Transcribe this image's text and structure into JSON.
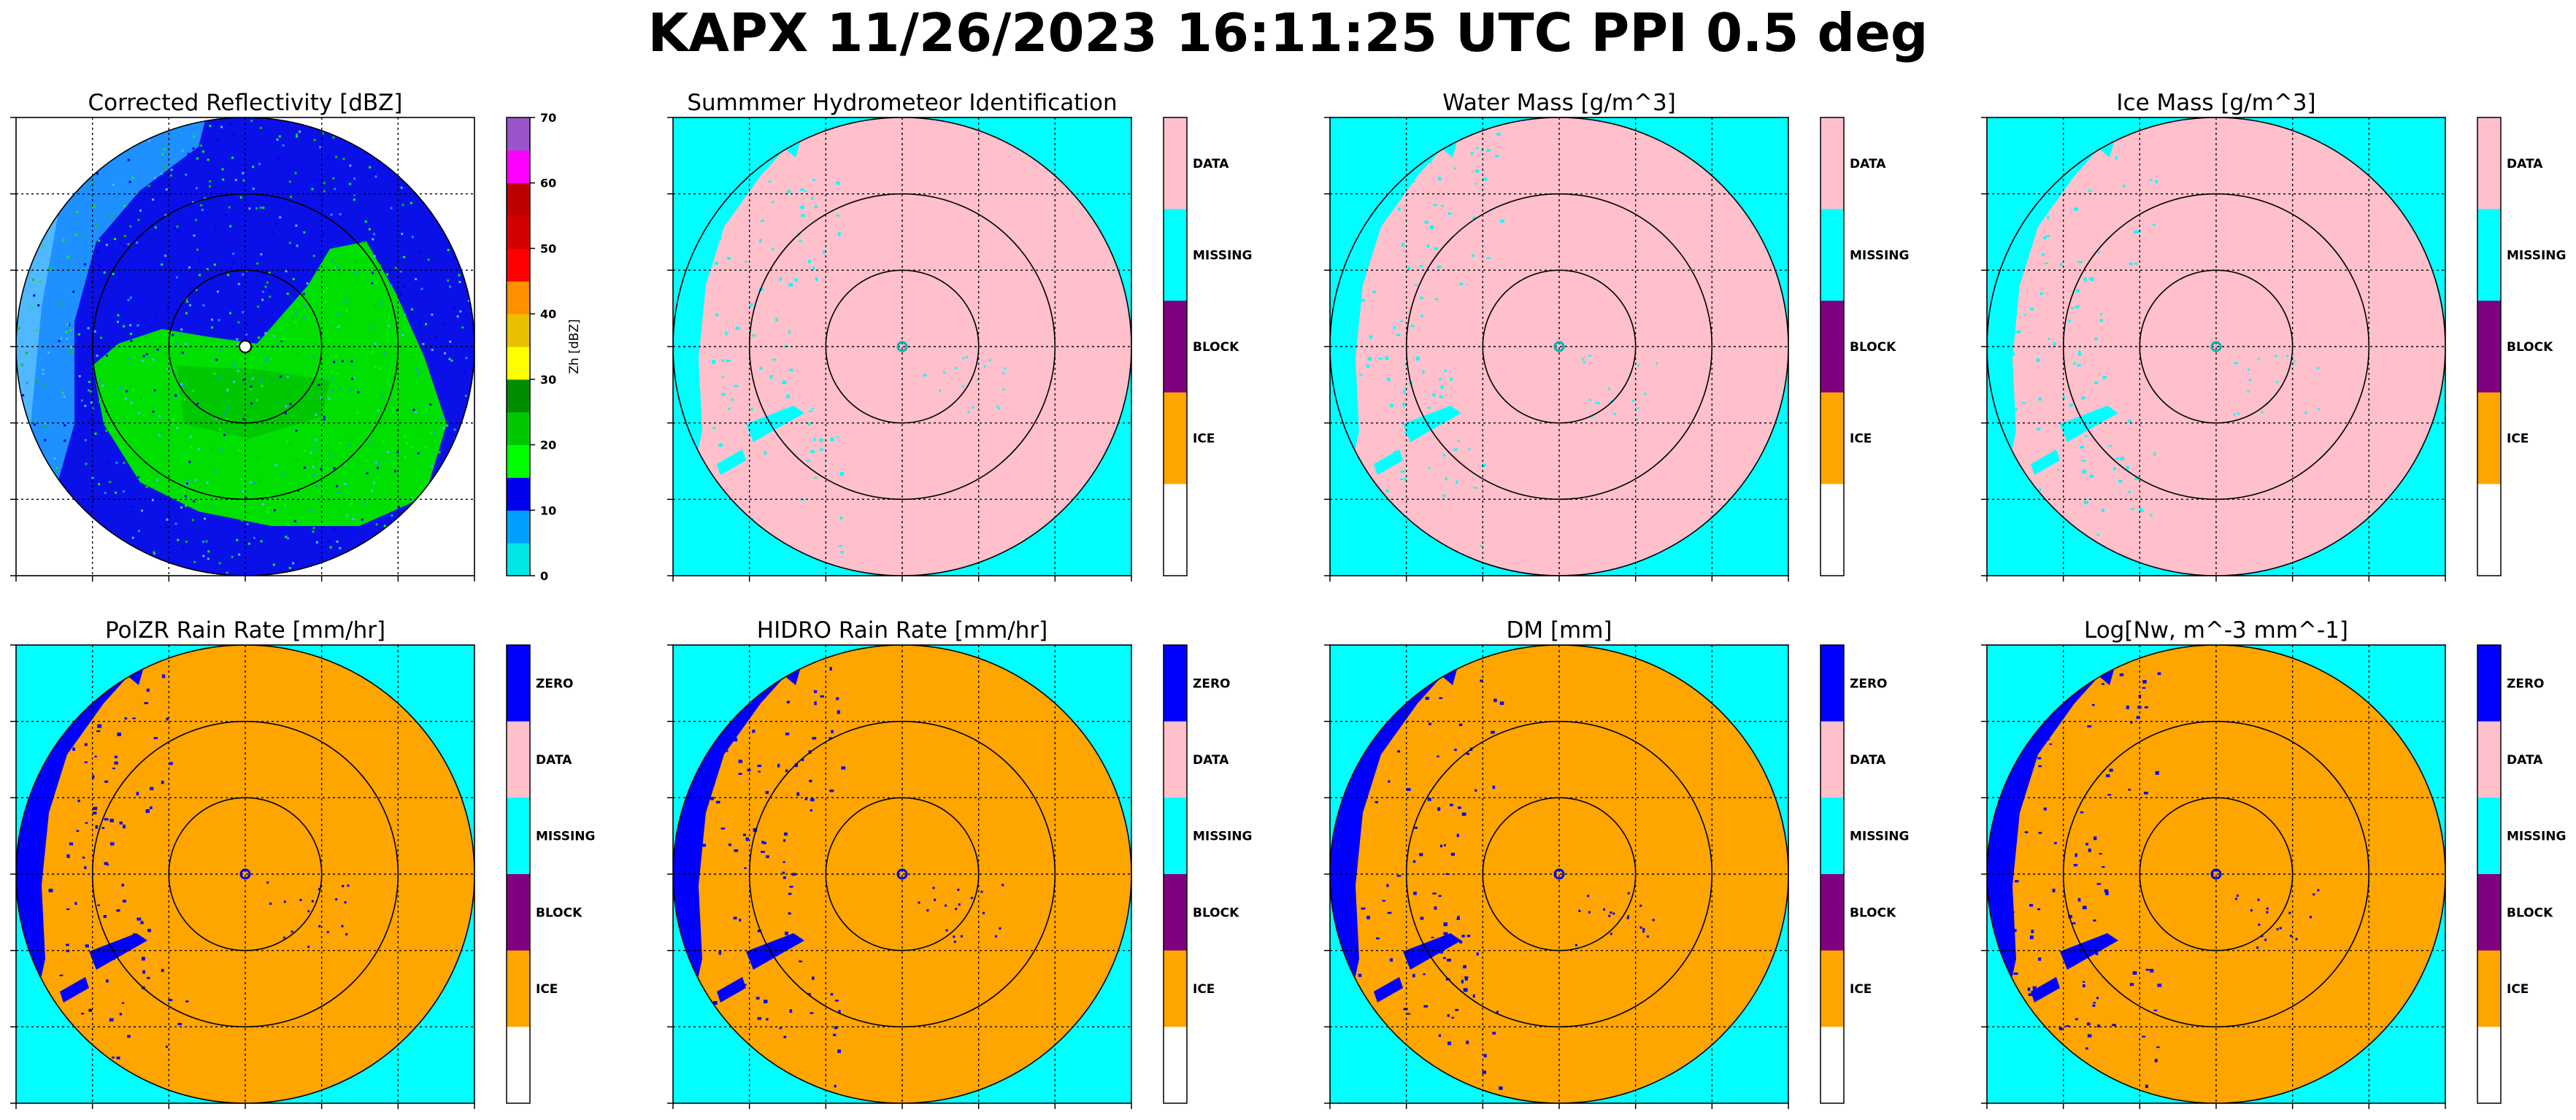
{
  "figure": {
    "suptitle": "KAPX 11/26/2023 16:11:25 UTC PPI 0.5 deg"
  },
  "chart_data": [
    {
      "type": "heatmap",
      "title": "Corrected Reflectivity [dBZ]",
      "render": "reflectivity",
      "colorbar": {
        "kind": "continuous",
        "label": "Zh [dBZ]",
        "ticks": [
          "0",
          "10",
          "20",
          "30",
          "40",
          "50",
          "60",
          "70"
        ],
        "range": [
          0,
          70
        ],
        "bins": [
          {
            "from": 0,
            "to": 5,
            "color": "#00e6e6"
          },
          {
            "from": 5,
            "to": 10,
            "color": "#00a0ff"
          },
          {
            "from": 10,
            "to": 15,
            "color": "#0000f0"
          },
          {
            "from": 15,
            "to": 20,
            "color": "#00ff00"
          },
          {
            "from": 20,
            "to": 25,
            "color": "#00c800"
          },
          {
            "from": 25,
            "to": 30,
            "color": "#008c00"
          },
          {
            "from": 30,
            "to": 35,
            "color": "#ffff00"
          },
          {
            "from": 35,
            "to": 40,
            "color": "#e8c000"
          },
          {
            "from": 40,
            "to": 45,
            "color": "#ff9000"
          },
          {
            "from": 45,
            "to": 50,
            "color": "#ff0000"
          },
          {
            "from": 50,
            "to": 55,
            "color": "#d40000"
          },
          {
            "from": 55,
            "to": 60,
            "color": "#bc0000"
          },
          {
            "from": 60,
            "to": 65,
            "color": "#ff00ff"
          },
          {
            "from": 65,
            "to": 70,
            "color": "#9955c9"
          }
        ]
      }
    },
    {
      "type": "heatmap",
      "title": "Summmer Hydrometeor Identification",
      "render": "categorical",
      "outside_color": "#00ffff",
      "disc_color": "#ffc0cb",
      "speckle_color": "#00ffff",
      "colorbar": {
        "kind": "categorical",
        "categories": [
          {
            "label": "DATA",
            "color": "#ffc0cb"
          },
          {
            "label": "MISSING",
            "color": "#00ffff"
          },
          {
            "label": "BLOCK",
            "color": "#800080"
          },
          {
            "label": "ICE",
            "color": "#ffa500"
          },
          {
            "label": "",
            "color": "#ffffff"
          }
        ]
      }
    },
    {
      "type": "heatmap",
      "title": "Water Mass [g/m^3]",
      "render": "categorical",
      "outside_color": "#00ffff",
      "disc_color": "#ffc0cb",
      "speckle_color": "#00ffff",
      "colorbar": {
        "kind": "categorical",
        "categories": [
          {
            "label": "DATA",
            "color": "#ffc0cb"
          },
          {
            "label": "MISSING",
            "color": "#00ffff"
          },
          {
            "label": "BLOCK",
            "color": "#800080"
          },
          {
            "label": "ICE",
            "color": "#ffa500"
          },
          {
            "label": "",
            "color": "#ffffff"
          }
        ]
      }
    },
    {
      "type": "heatmap",
      "title": "Ice Mass [g/m^3]",
      "render": "categorical",
      "outside_color": "#00ffff",
      "disc_color": "#ffc0cb",
      "speckle_color": "#00ffff",
      "colorbar": {
        "kind": "categorical",
        "categories": [
          {
            "label": "DATA",
            "color": "#ffc0cb"
          },
          {
            "label": "MISSING",
            "color": "#00ffff"
          },
          {
            "label": "BLOCK",
            "color": "#800080"
          },
          {
            "label": "ICE",
            "color": "#ffa500"
          },
          {
            "label": "",
            "color": "#ffffff"
          }
        ]
      }
    },
    {
      "type": "heatmap",
      "title": "PolZR Rain Rate [mm/hr]",
      "render": "categorical",
      "outside_color": "#00ffff",
      "disc_color": "#ffa500",
      "speckle_color": "#0000ff",
      "colorbar": {
        "kind": "categorical",
        "categories": [
          {
            "label": "ZERO",
            "color": "#0000ff"
          },
          {
            "label": "DATA",
            "color": "#ffc0cb"
          },
          {
            "label": "MISSING",
            "color": "#00ffff"
          },
          {
            "label": "BLOCK",
            "color": "#800080"
          },
          {
            "label": "ICE",
            "color": "#ffa500"
          },
          {
            "label": "",
            "color": "#ffffff"
          }
        ]
      }
    },
    {
      "type": "heatmap",
      "title": "HIDRO Rain Rate [mm/hr]",
      "render": "categorical",
      "outside_color": "#00ffff",
      "disc_color": "#ffa500",
      "speckle_color": "#0000ff",
      "colorbar": {
        "kind": "categorical",
        "categories": [
          {
            "label": "ZERO",
            "color": "#0000ff"
          },
          {
            "label": "DATA",
            "color": "#ffc0cb"
          },
          {
            "label": "MISSING",
            "color": "#00ffff"
          },
          {
            "label": "BLOCK",
            "color": "#800080"
          },
          {
            "label": "ICE",
            "color": "#ffa500"
          },
          {
            "label": "",
            "color": "#ffffff"
          }
        ]
      }
    },
    {
      "type": "heatmap",
      "title": "DM [mm]",
      "render": "categorical",
      "outside_color": "#00ffff",
      "disc_color": "#ffa500",
      "speckle_color": "#0000ff",
      "colorbar": {
        "kind": "categorical",
        "categories": [
          {
            "label": "ZERO",
            "color": "#0000ff"
          },
          {
            "label": "DATA",
            "color": "#ffc0cb"
          },
          {
            "label": "MISSING",
            "color": "#00ffff"
          },
          {
            "label": "BLOCK",
            "color": "#800080"
          },
          {
            "label": "ICE",
            "color": "#ffa500"
          },
          {
            "label": "",
            "color": "#ffffff"
          }
        ]
      }
    },
    {
      "type": "heatmap",
      "title": "Log[Nw, m^-3 mm^-1]",
      "render": "categorical",
      "outside_color": "#00ffff",
      "disc_color": "#ffa500",
      "speckle_color": "#0000ff",
      "colorbar": {
        "kind": "categorical",
        "categories": [
          {
            "label": "ZERO",
            "color": "#0000ff"
          },
          {
            "label": "DATA",
            "color": "#ffc0cb"
          },
          {
            "label": "MISSING",
            "color": "#00ffff"
          },
          {
            "label": "BLOCK",
            "color": "#800080"
          },
          {
            "label": "ICE",
            "color": "#ffa500"
          },
          {
            "label": "",
            "color": "#ffffff"
          }
        ]
      }
    }
  ]
}
